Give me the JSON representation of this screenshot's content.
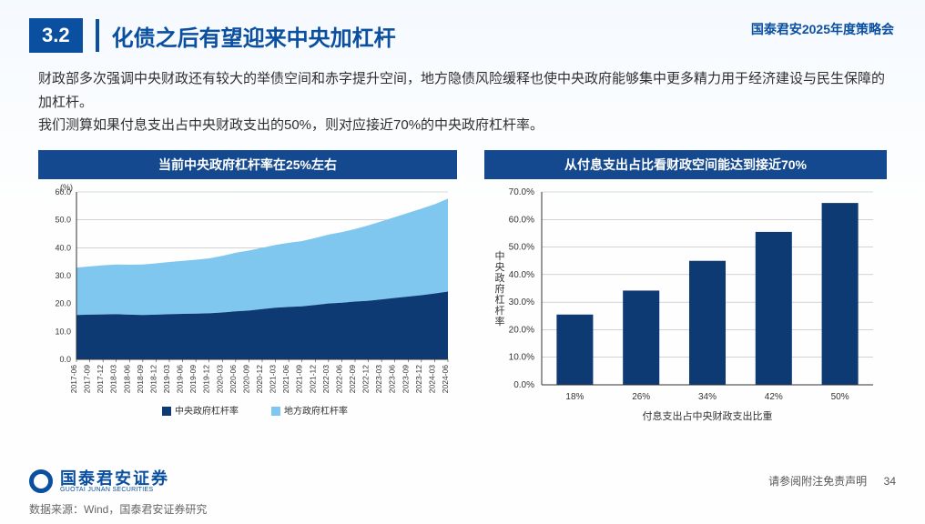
{
  "header": {
    "section_number": "3.2",
    "title": "化债之后有望迎来中央加杠杆",
    "top_right": "国泰君安2025年度策略会"
  },
  "paragraphs": {
    "p1": "财政部多次强调中央财政还有较大的举债空间和赤字提升空间，地方隐债风险缓释也使中央政府能够集中更多精力用于经济建设与民生保障的加杠杆。",
    "p2": "我们测算如果付息支出占中央财政支出的50%，则对应接近70%的中央政府杠杆率。"
  },
  "left_chart": {
    "type": "area",
    "title": "当前中央政府杠杆率在25%左右",
    "y_unit": "(%)",
    "ylim": [
      0,
      60
    ],
    "ytick_step": 10,
    "x_labels": [
      "2017-06",
      "2017-09",
      "2017-12",
      "2018-03",
      "2018-06",
      "2018-09",
      "2018-12",
      "2019-03",
      "2019-06",
      "2019-09",
      "2019-12",
      "2020-03",
      "2020-06",
      "2020-09",
      "2020-12",
      "2021-03",
      "2021-06",
      "2021-09",
      "2021-12",
      "2022-03",
      "2022-06",
      "2022-09",
      "2022-12",
      "2023-03",
      "2023-06",
      "2023-09",
      "2023-12",
      "2024-03",
      "2024-06"
    ],
    "series": [
      {
        "name": "中央政府杠杆率",
        "color": "#0e3a73",
        "values": [
          15.9,
          16.0,
          16.1,
          16.2,
          16.0,
          15.9,
          16.0,
          16.2,
          16.3,
          16.4,
          16.5,
          16.8,
          17.2,
          17.5,
          18.0,
          18.5,
          18.8,
          19.0,
          19.5,
          20.0,
          20.3,
          20.7,
          21.0,
          21.5,
          22.0,
          22.5,
          23.0,
          23.6,
          24.3
        ]
      },
      {
        "name": "地方政府杠杆率",
        "color": "#7fc7ef",
        "values": [
          17.0,
          17.3,
          17.6,
          17.8,
          17.9,
          18.1,
          18.4,
          18.7,
          19.0,
          19.3,
          19.7,
          20.3,
          21.0,
          21.5,
          22.0,
          22.5,
          23.0,
          23.4,
          24.0,
          24.7,
          25.3,
          26.0,
          27.0,
          28.0,
          29.0,
          30.0,
          31.0,
          32.0,
          33.3
        ]
      }
    ],
    "legend_label_1": "中央政府杠杆率",
    "legend_label_2": "地方政府杠杆率",
    "background_color": "#ffffff",
    "grid_color": "#b9b9b9",
    "axis_fontsize": 9
  },
  "right_chart": {
    "type": "bar",
    "title": "从付息支出占比看财政空间能达到接近70%",
    "y_label": "中央政府杠杆率",
    "x_label": "付息支出占中央财政支出比重",
    "categories": [
      "18%",
      "26%",
      "34%",
      "42%",
      "50%"
    ],
    "values": [
      25.5,
      34.2,
      45.0,
      55.5,
      66.0
    ],
    "bar_color": "#0e3a73",
    "ylim": [
      0,
      70
    ],
    "ytick_step": 10,
    "y_format": ".0%",
    "grid_color": "#b9b9b9",
    "axis_fontsize": 10,
    "bar_width": 0.55
  },
  "footer": {
    "logo_cn": "国泰君安证券",
    "logo_en": "GUOTAI JUNAN SECURITIES",
    "disclaimer": "请参阅附注免责声明",
    "page": "34",
    "source": "数据来源：Wind，国泰君安证券研究"
  }
}
